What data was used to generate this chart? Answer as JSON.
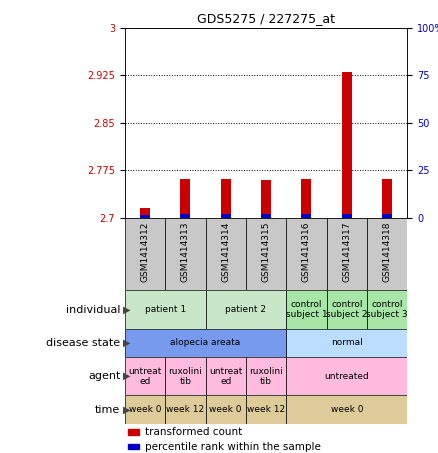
{
  "title": "GDS5275 / 227275_at",
  "samples": [
    "GSM1414312",
    "GSM1414313",
    "GSM1414314",
    "GSM1414315",
    "GSM1414316",
    "GSM1414317",
    "GSM1414318"
  ],
  "red_values": [
    2.715,
    2.762,
    2.762,
    2.76,
    2.762,
    2.93,
    2.762
  ],
  "blue_values": [
    2.705,
    2.706,
    2.706,
    2.706,
    2.706,
    2.706,
    2.706
  ],
  "ylim_left": [
    2.7,
    3.0
  ],
  "ylim_right": [
    0,
    100
  ],
  "yticks_left": [
    2.7,
    2.775,
    2.85,
    2.925,
    3.0
  ],
  "ytick_labels_left": [
    "2.7",
    "2.775",
    "2.85",
    "2.925",
    "3"
  ],
  "yticks_right": [
    0,
    25,
    50,
    75,
    100
  ],
  "ytick_labels_right": [
    "0",
    "25",
    "50",
    "75",
    "100%"
  ],
  "red_color": "#cc0000",
  "blue_color": "#0000cc",
  "plot_bg": "#ffffff",
  "annotation_rows": {
    "individual": {
      "label": "individual",
      "cells": [
        {
          "text": "patient 1",
          "span": [
            0,
            1
          ],
          "color": "#c8e6c8"
        },
        {
          "text": "patient 2",
          "span": [
            2,
            3
          ],
          "color": "#c8e6c8"
        },
        {
          "text": "control\nsubject 1",
          "span": [
            4,
            4
          ],
          "color": "#a8e6a8"
        },
        {
          "text": "control\nsubject 2",
          "span": [
            5,
            5
          ],
          "color": "#a8e6a8"
        },
        {
          "text": "control\nsubject 3",
          "span": [
            6,
            6
          ],
          "color": "#a8e6a8"
        }
      ]
    },
    "disease_state": {
      "label": "disease state",
      "cells": [
        {
          "text": "alopecia areata",
          "span": [
            0,
            3
          ],
          "color": "#7799ee"
        },
        {
          "text": "normal",
          "span": [
            4,
            6
          ],
          "color": "#bbddff"
        }
      ]
    },
    "agent": {
      "label": "agent",
      "cells": [
        {
          "text": "untreat\ned",
          "span": [
            0,
            0
          ],
          "color": "#ffbbdd"
        },
        {
          "text": "ruxolini\ntib",
          "span": [
            1,
            1
          ],
          "color": "#ffbbdd"
        },
        {
          "text": "untreat\ned",
          "span": [
            2,
            2
          ],
          "color": "#ffbbdd"
        },
        {
          "text": "ruxolini\ntib",
          "span": [
            3,
            3
          ],
          "color": "#ffbbdd"
        },
        {
          "text": "untreated",
          "span": [
            4,
            6
          ],
          "color": "#ffbbdd"
        }
      ]
    },
    "time": {
      "label": "time",
      "cells": [
        {
          "text": "week 0",
          "span": [
            0,
            0
          ],
          "color": "#ddcc99"
        },
        {
          "text": "week 12",
          "span": [
            1,
            1
          ],
          "color": "#ddcc99"
        },
        {
          "text": "week 0",
          "span": [
            2,
            2
          ],
          "color": "#ddcc99"
        },
        {
          "text": "week 12",
          "span": [
            3,
            3
          ],
          "color": "#ddcc99"
        },
        {
          "text": "week 0",
          "span": [
            4,
            6
          ],
          "color": "#ddcc99"
        }
      ]
    }
  },
  "legend": [
    {
      "color": "#cc0000",
      "label": "transformed count"
    },
    {
      "color": "#0000cc",
      "label": "percentile rank within the sample"
    }
  ],
  "xticklabel_bg": "#c8c8c8",
  "row_keys_order": [
    "individual",
    "disease_state",
    "agent",
    "time"
  ]
}
